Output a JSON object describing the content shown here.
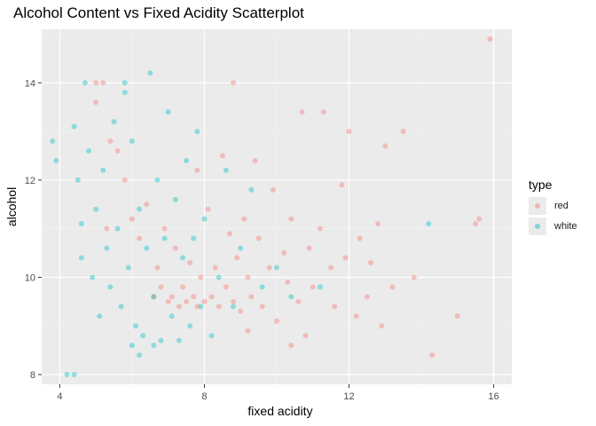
{
  "chart_data": {
    "type": "scatter",
    "title": "Alcohol Content vs Fixed Acidity Scatterplot",
    "xlabel": "fixed acidity",
    "ylabel": "alcohol",
    "xlim": [
      3.5,
      16.5
    ],
    "ylim": [
      7.8,
      15.1
    ],
    "xticks": [
      "4",
      "8",
      "12",
      "16"
    ],
    "yticks": [
      "8",
      "10",
      "12",
      "14"
    ],
    "xtick_values": [
      4,
      8,
      12,
      16
    ],
    "ytick_values": [
      8,
      10,
      12,
      14
    ],
    "grid": true,
    "legend": {
      "title": "type",
      "position": "right"
    },
    "series": [
      {
        "name": "red",
        "color": "#F8766D",
        "points": [
          [
            15.9,
            14.9
          ],
          [
            15.6,
            11.2
          ],
          [
            15.5,
            11.1
          ],
          [
            15.0,
            9.2
          ],
          [
            14.3,
            8.4
          ],
          [
            13.8,
            10.0
          ],
          [
            13.5,
            13.0
          ],
          [
            13.2,
            9.8
          ],
          [
            13.0,
            12.7
          ],
          [
            12.9,
            9.0
          ],
          [
            12.8,
            11.1
          ],
          [
            12.6,
            10.3
          ],
          [
            12.5,
            9.6
          ],
          [
            12.3,
            10.8
          ],
          [
            12.2,
            9.2
          ],
          [
            12.0,
            13.0
          ],
          [
            11.9,
            10.4
          ],
          [
            11.8,
            11.9
          ],
          [
            11.6,
            9.4
          ],
          [
            11.5,
            10.2
          ],
          [
            11.3,
            13.4
          ],
          [
            11.2,
            11.0
          ],
          [
            11.0,
            9.8
          ],
          [
            10.9,
            10.6
          ],
          [
            10.7,
            13.4
          ],
          [
            10.6,
            9.5
          ],
          [
            10.4,
            11.2
          ],
          [
            10.3,
            9.9
          ],
          [
            10.2,
            10.5
          ],
          [
            10.0,
            9.1
          ],
          [
            9.9,
            11.8
          ],
          [
            9.8,
            10.2
          ],
          [
            9.6,
            9.4
          ],
          [
            9.5,
            10.8
          ],
          [
            9.4,
            12.4
          ],
          [
            9.3,
            9.6
          ],
          [
            9.2,
            10.0
          ],
          [
            9.1,
            11.2
          ],
          [
            9.0,
            9.3
          ],
          [
            8.9,
            10.4
          ],
          [
            8.8,
            14.0
          ],
          [
            8.8,
            9.5
          ],
          [
            8.7,
            10.9
          ],
          [
            8.6,
            9.8
          ],
          [
            8.5,
            12.5
          ],
          [
            8.4,
            9.4
          ],
          [
            8.3,
            10.2
          ],
          [
            8.2,
            9.6
          ],
          [
            8.1,
            11.4
          ],
          [
            8.0,
            9.5
          ],
          [
            7.9,
            10.0
          ],
          [
            7.8,
            9.4
          ],
          [
            7.8,
            12.2
          ],
          [
            7.7,
            9.6
          ],
          [
            7.6,
            10.3
          ],
          [
            7.5,
            9.5
          ],
          [
            7.4,
            9.8
          ],
          [
            7.3,
            9.4
          ],
          [
            7.2,
            10.6
          ],
          [
            7.1,
            9.6
          ],
          [
            7.0,
            9.5
          ],
          [
            6.9,
            11.0
          ],
          [
            6.8,
            9.8
          ],
          [
            6.7,
            10.2
          ],
          [
            6.6,
            9.6
          ],
          [
            6.4,
            11.5
          ],
          [
            6.2,
            10.8
          ],
          [
            6.0,
            11.2
          ],
          [
            5.8,
            12.0
          ],
          [
            5.6,
            12.6
          ],
          [
            5.4,
            12.8
          ],
          [
            5.2,
            14.0
          ],
          [
            5.0,
            14.0
          ],
          [
            5.0,
            13.6
          ],
          [
            5.3,
            11.0
          ],
          [
            9.2,
            8.9
          ],
          [
            10.4,
            8.6
          ],
          [
            10.8,
            8.8
          ]
        ]
      },
      {
        "name": "white",
        "color": "#00BFC4",
        "points": [
          [
            3.8,
            12.8
          ],
          [
            3.9,
            12.4
          ],
          [
            4.2,
            8.0
          ],
          [
            4.4,
            8.0
          ],
          [
            4.4,
            13.1
          ],
          [
            4.5,
            12.0
          ],
          [
            4.6,
            11.1
          ],
          [
            4.6,
            10.4
          ],
          [
            4.7,
            14.0
          ],
          [
            4.8,
            12.6
          ],
          [
            4.9,
            10.0
          ],
          [
            5.0,
            11.4
          ],
          [
            5.1,
            9.2
          ],
          [
            5.2,
            12.2
          ],
          [
            5.3,
            10.6
          ],
          [
            5.4,
            9.8
          ],
          [
            5.5,
            13.2
          ],
          [
            5.6,
            11.0
          ],
          [
            5.7,
            9.4
          ],
          [
            5.8,
            14.0
          ],
          [
            5.9,
            10.2
          ],
          [
            6.0,
            12.8
          ],
          [
            6.1,
            9.0
          ],
          [
            6.2,
            11.4
          ],
          [
            6.3,
            8.8
          ],
          [
            6.4,
            10.6
          ],
          [
            6.5,
            14.2
          ],
          [
            6.6,
            9.6
          ],
          [
            6.7,
            12.0
          ],
          [
            6.8,
            8.7
          ],
          [
            6.9,
            10.8
          ],
          [
            7.0,
            13.4
          ],
          [
            7.1,
            9.2
          ],
          [
            7.2,
            11.6
          ],
          [
            7.3,
            8.7
          ],
          [
            7.4,
            10.4
          ],
          [
            7.5,
            12.4
          ],
          [
            7.6,
            9.0
          ],
          [
            7.7,
            10.8
          ],
          [
            7.8,
            13.0
          ],
          [
            7.9,
            9.4
          ],
          [
            8.0,
            11.2
          ],
          [
            8.2,
            8.8
          ],
          [
            8.4,
            10.0
          ],
          [
            8.6,
            12.2
          ],
          [
            8.8,
            9.4
          ],
          [
            9.0,
            10.6
          ],
          [
            9.3,
            11.8
          ],
          [
            9.6,
            9.8
          ],
          [
            10.0,
            10.2
          ],
          [
            10.4,
            9.6
          ],
          [
            11.2,
            9.8
          ],
          [
            14.2,
            11.1
          ],
          [
            6.2,
            8.4
          ],
          [
            6.6,
            8.6
          ],
          [
            5.8,
            13.8
          ],
          [
            6.0,
            8.6
          ]
        ]
      }
    ]
  }
}
